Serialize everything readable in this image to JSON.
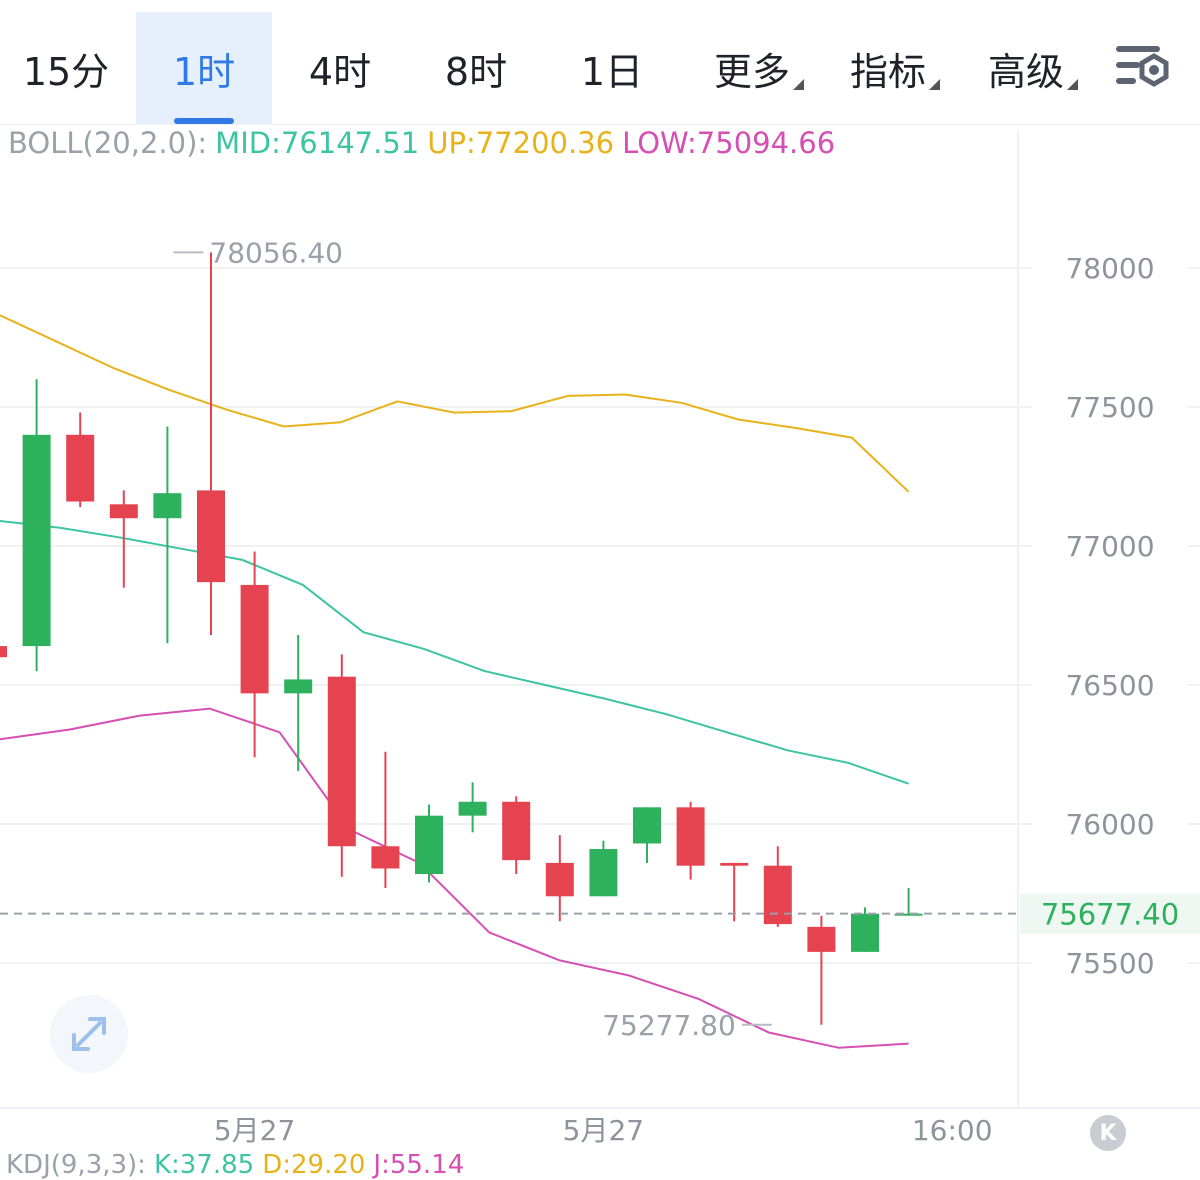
{
  "tabs": [
    {
      "label": "15分",
      "active": false
    },
    {
      "label": "1时",
      "active": true
    },
    {
      "label": "4时",
      "active": false
    },
    {
      "label": "8时",
      "active": false
    },
    {
      "label": "1日",
      "active": false
    },
    {
      "label": "更多",
      "active": false,
      "dropdown": true
    },
    {
      "label": "指标",
      "active": false,
      "dropdown": true
    },
    {
      "label": "高级",
      "active": false,
      "dropdown": true
    }
  ],
  "settings_icon": "chart-settings-icon",
  "boll": {
    "name": "BOLL(20,2.0):",
    "mid": "MID:76147.51",
    "up": "UP:77200.36",
    "low": "LOW:75094.66"
  },
  "kdj": {
    "name": "KDJ(9,3,3):",
    "k": "K:37.85",
    "d": "D:29.20",
    "j": "J:55.14"
  },
  "colors": {
    "up": "#2eb15c",
    "down": "#e4434f",
    "mid": "#3cc4a3",
    "upper": "#e8b21a",
    "lower": "#d64fb3",
    "accent": "#2f7ae5"
  },
  "expand_icon": "expand-icon",
  "k_button": "K",
  "chart_data": {
    "type": "candlestick",
    "interval": "1时",
    "ylim": [
      75050,
      78450
    ],
    "y_ticks": [
      78000,
      77500,
      77000,
      76500,
      76000,
      75500
    ],
    "x_labels": [
      {
        "label": "5月27",
        "index": 6
      },
      {
        "label": "5月27",
        "index": 14
      },
      {
        "label": "16:00",
        "index": 22
      }
    ],
    "last_price": "75677.40",
    "annotations": [
      {
        "label": "78056.40",
        "index": 4,
        "value": 78056.4,
        "type": "high"
      },
      {
        "label": "75277.80",
        "index": 18,
        "value": 75277.8,
        "type": "low"
      }
    ],
    "candles": [
      {
        "o": 76640,
        "h": 76660,
        "l": 76610,
        "c": 76600
      },
      {
        "o": 76640,
        "h": 77600,
        "l": 76550,
        "c": 77400
      },
      {
        "o": 77400,
        "h": 77480,
        "l": 77140,
        "c": 77160
      },
      {
        "o": 77150,
        "h": 77200,
        "l": 76850,
        "c": 77100
      },
      {
        "o": 77100,
        "h": 77430,
        "l": 76650,
        "c": 77190
      },
      {
        "o": 77200,
        "h": 78056.4,
        "l": 76680,
        "c": 76870
      },
      {
        "o": 76860,
        "h": 76980,
        "l": 76240,
        "c": 76470
      },
      {
        "o": 76470,
        "h": 76680,
        "l": 76190,
        "c": 76520
      },
      {
        "o": 76530,
        "h": 76610,
        "l": 75810,
        "c": 75920
      },
      {
        "o": 75920,
        "h": 76260,
        "l": 75770,
        "c": 75840
      },
      {
        "o": 75820,
        "h": 76070,
        "l": 75790,
        "c": 76030
      },
      {
        "o": 76030,
        "h": 76150,
        "l": 75970,
        "c": 76080
      },
      {
        "o": 76080,
        "h": 76100,
        "l": 75820,
        "c": 75870
      },
      {
        "o": 75860,
        "h": 75960,
        "l": 75650,
        "c": 75740
      },
      {
        "o": 75740,
        "h": 75940,
        "l": 75740,
        "c": 75910
      },
      {
        "o": 75930,
        "h": 76060,
        "l": 75860,
        "c": 76060
      },
      {
        "o": 76060,
        "h": 76080,
        "l": 75800,
        "c": 75850
      },
      {
        "o": 75860,
        "h": 75860,
        "l": 75650,
        "c": 75850
      },
      {
        "o": 75850,
        "h": 75920,
        "l": 75630,
        "c": 75640
      },
      {
        "o": 75630,
        "h": 75670,
        "l": 75277.8,
        "c": 75540
      },
      {
        "o": 75540,
        "h": 75700,
        "l": 75540,
        "c": 75677.4
      },
      {
        "o": 75677.4,
        "h": 75770,
        "l": 75670,
        "c": 75677.4
      }
    ],
    "boll_upper": [
      77830,
      77735,
      77640,
      77560,
      77490,
      77430,
      77445,
      77520,
      77480,
      77485,
      77540,
      77545,
      77515,
      77455,
      77425,
      77390,
      77195
    ],
    "boll_mid": [
      77090,
      77065,
      77030,
      76990,
      76950,
      76860,
      76690,
      76630,
      76550,
      76500,
      76450,
      76395,
      76330,
      76265,
      76220,
      76145
    ],
    "boll_lower": [
      76305,
      76340,
      76390,
      76415,
      76330,
      75980,
      75860,
      75610,
      75510,
      75455,
      75370,
      75250,
      75195,
      75210
    ],
    "boll_upper_index_start": 0,
    "boll_mid_index_start": 0,
    "boll_lower_index_start": 0
  }
}
